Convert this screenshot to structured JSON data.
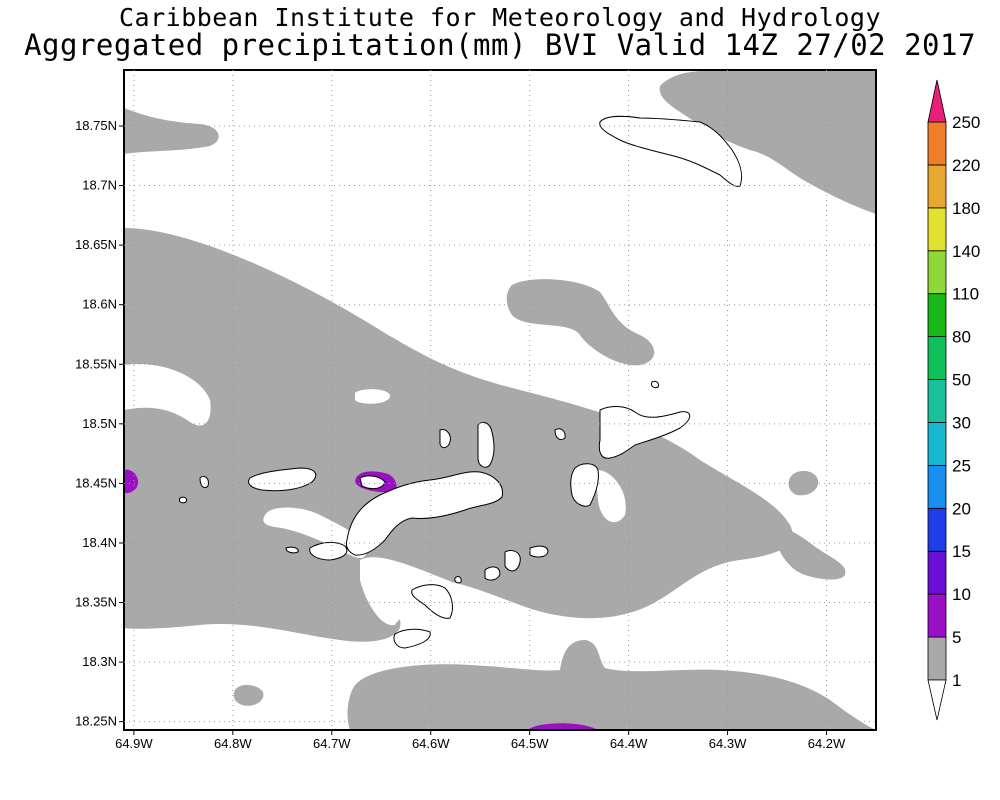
{
  "header": {
    "institute": "Caribbean Institute for Meteorology and Hydrology",
    "product": "Aggregated precipitation(mm) BVI Valid 14Z 27/02 2017"
  },
  "map": {
    "region": "British Virgin Islands",
    "lon_range": [
      -64.91,
      -64.15
    ],
    "lat_range": [
      18.243,
      18.797
    ],
    "lat_ticks": [
      "18.75N",
      "18.7N",
      "18.65N",
      "18.6N",
      "18.55N",
      "18.5N",
      "18.45N",
      "18.4N",
      "18.35N",
      "18.3N",
      "18.25N"
    ],
    "lon_ticks": [
      "64.9W",
      "64.8W",
      "64.7W",
      "64.6W",
      "64.5W",
      "64.4W",
      "64.3W",
      "64.2W"
    ],
    "grid": "dotted",
    "rain_fill_color": "#a9a9a9",
    "heavy_rain_color": "#9a0fc4"
  },
  "colorbar": {
    "labels": [
      "1",
      "5",
      "10",
      "15",
      "20",
      "25",
      "30",
      "50",
      "80",
      "110",
      "140",
      "180",
      "220",
      "250"
    ],
    "colors": [
      "#a9a9a9",
      "#9a10c6",
      "#6a0fd8",
      "#1f3ee8",
      "#1890f0",
      "#18b8d0",
      "#19c09a",
      "#10c05a",
      "#18b818",
      "#8ed838",
      "#e2e030",
      "#e8a830",
      "#f07e28",
      "#f04040",
      "#e8207a"
    ]
  }
}
